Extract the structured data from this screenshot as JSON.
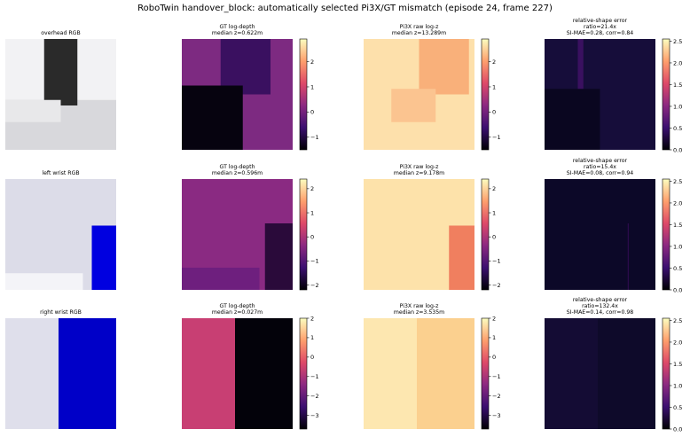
{
  "title": "RoboTwin handover_block: automatically selected Pi3X/GT mismatch (episode 24, frame 227)",
  "rows": [
    {
      "panels": [
        {
          "title": [
            "overhead RGB"
          ]
        },
        {
          "title": [
            "GT log-depth",
            "median z=0.622m"
          ],
          "colorbar": {
            "ylim": [
              -1.5,
              2.9
            ],
            "yticks": [
              {
                "value": -1,
                "label": "−1"
              },
              0,
              1,
              2
            ]
          }
        },
        {
          "title": [
            "Pi3X raw log-z",
            "median z=13.289m"
          ],
          "colorbar": {
            "ylim": [
              -1.5,
              2.9
            ],
            "yticks": [
              {
                "value": -1,
                "label": "−1"
              },
              0,
              1,
              2
            ]
          }
        },
        {
          "title": [
            "relative-shape error",
            "ratio=21.4x",
            "SI-MAE=0.28, corr=0.84"
          ],
          "colorbar": {
            "ylim": [
              0,
              2.55
            ],
            "yticks": [
              {
                "value": 0,
                "label": "0.0"
              },
              {
                "value": 0.5,
                "label": "0.5"
              },
              {
                "value": 1,
                "label": "1.0"
              },
              {
                "value": 1.5,
                "label": "1.5"
              },
              {
                "value": 2,
                "label": "2.0"
              },
              {
                "value": 2.5,
                "label": "2.5"
              }
            ]
          }
        }
      ]
    },
    {
      "panels": [
        {
          "title": [
            "left wrist RGB"
          ]
        },
        {
          "title": [
            "GT log-depth",
            "median z=0.596m"
          ],
          "colorbar": {
            "ylim": [
              -2.2,
              2.4
            ],
            "yticks": [
              {
                "value": -2,
                "label": "−2"
              },
              {
                "value": -1,
                "label": "−1"
              },
              0,
              1,
              2
            ]
          }
        },
        {
          "title": [
            "Pi3X raw log-z",
            "median z=9.178m"
          ],
          "colorbar": {
            "ylim": [
              -2.2,
              2.4
            ],
            "yticks": [
              {
                "value": -2,
                "label": "−2"
              },
              {
                "value": -1,
                "label": "−1"
              },
              0,
              1,
              2
            ]
          }
        },
        {
          "title": [
            "relative-shape error",
            "ratio=15.4x",
            "SI-MAE=0.08, corr=0.94"
          ],
          "colorbar": {
            "ylim": [
              0,
              2.55
            ],
            "yticks": [
              {
                "value": 0,
                "label": "0.0"
              },
              {
                "value": 0.5,
                "label": "0.5"
              },
              {
                "value": 1,
                "label": "1.0"
              },
              {
                "value": 1.5,
                "label": "1.5"
              },
              {
                "value": 2,
                "label": "2.0"
              },
              {
                "value": 2.5,
                "label": "2.5"
              }
            ]
          }
        }
      ]
    },
    {
      "panels": [
        {
          "title": [
            "right wrist RGB"
          ]
        },
        {
          "title": [
            "GT log-depth",
            "median z=0.027m"
          ],
          "colorbar": {
            "ylim": [
              -3.7,
              2.0
            ],
            "yticks": [
              {
                "value": -3,
                "label": "−3"
              },
              {
                "value": -2,
                "label": "−2"
              },
              {
                "value": -1,
                "label": "−1"
              },
              0,
              1,
              2
            ]
          }
        },
        {
          "title": [
            "Pi3X raw log-z",
            "median z=3.535m"
          ],
          "colorbar": {
            "ylim": [
              -3.7,
              2.0
            ],
            "yticks": [
              {
                "value": -3,
                "label": "−3"
              },
              {
                "value": -2,
                "label": "−2"
              },
              {
                "value": -1,
                "label": "−1"
              },
              0,
              1,
              2
            ]
          }
        },
        {
          "title": [
            "relative-shape error",
            "ratio=132.4x",
            "SI-MAE=0.14, corr=0.98"
          ],
          "colorbar": {
            "ylim": [
              0,
              2.55
            ],
            "yticks": [
              {
                "value": 0,
                "label": "0.0"
              },
              {
                "value": 0.5,
                "label": "0.5"
              },
              {
                "value": 1,
                "label": "1.0"
              },
              {
                "value": 1.5,
                "label": "1.5"
              },
              {
                "value": 2,
                "label": "2.0"
              },
              {
                "value": 2.5,
                "label": "2.5"
              }
            ]
          }
        }
      ]
    }
  ]
}
